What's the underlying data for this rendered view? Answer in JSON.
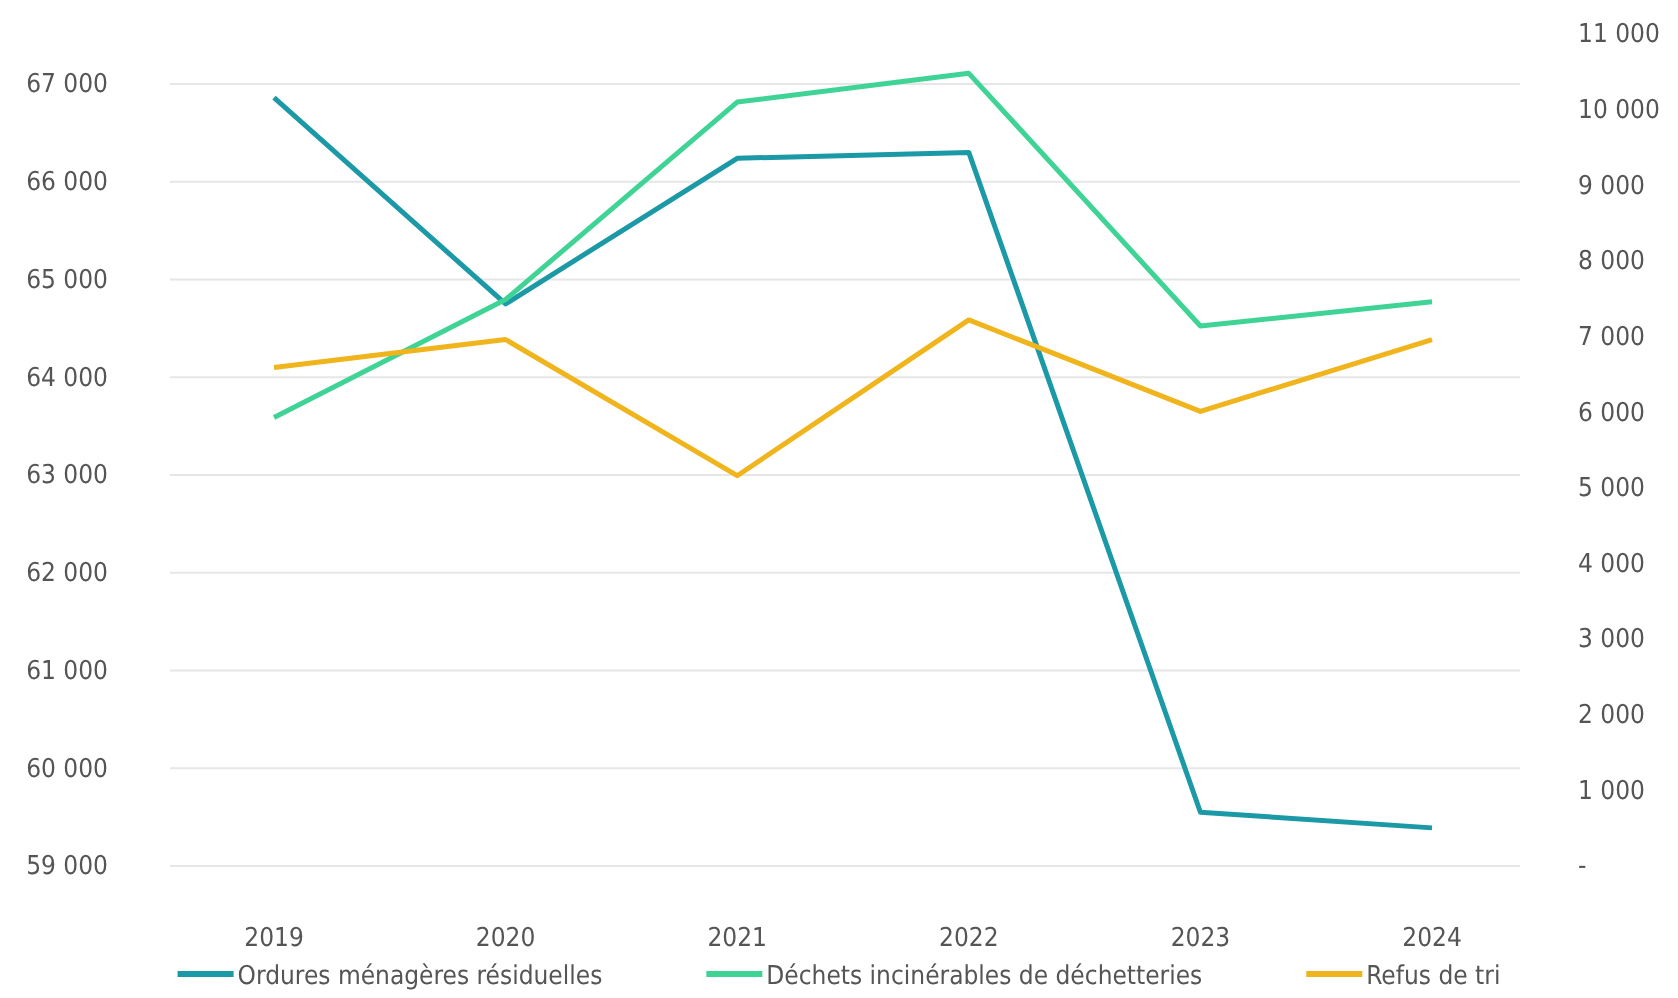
{
  "chart_data": {
    "type": "line",
    "categories": [
      "2019",
      "2020",
      "2021",
      "2022",
      "2023",
      "2024"
    ],
    "series": [
      {
        "name": "Ordures ménagères résiduelles",
        "color": "#1b99a6",
        "values": [
          66860,
          64750,
          66240,
          66300,
          59550,
          59390
        ]
      },
      {
        "name": "Déchets incinérables de déchetteries",
        "color": "#3fd495",
        "axis": "y2",
        "values": [
          5930,
          7490,
          10100,
          10480,
          7140,
          7460
        ]
      },
      {
        "name": "Refus de tri",
        "color": "#f0b41c",
        "axis": "y2",
        "values": [
          6590,
          6960,
          5160,
          7220,
          6010,
          6960
        ]
      }
    ],
    "ylim": [
      59000,
      67000
    ],
    "yticks": [
      {
        "value": 59000,
        "label": "59 000"
      },
      {
        "value": 60000,
        "label": "60 000"
      },
      {
        "value": 61000,
        "label": "61 000"
      },
      {
        "value": 62000,
        "label": "62 000"
      },
      {
        "value": 63000,
        "label": "63 000"
      },
      {
        "value": 64000,
        "label": "64 000"
      },
      {
        "value": 65000,
        "label": "65 000"
      },
      {
        "value": 66000,
        "label": "66 000"
      },
      {
        "value": 67000,
        "label": "67 000"
      }
    ],
    "y2lim": [
      0,
      11000
    ],
    "y2ticks": [
      {
        "value": 0,
        "label": "-"
      },
      {
        "value": 1000,
        "label": "1 000"
      },
      {
        "value": 2000,
        "label": "2 000"
      },
      {
        "value": 3000,
        "label": "3 000"
      },
      {
        "value": 4000,
        "label": "4 000"
      },
      {
        "value": 5000,
        "label": "5 000"
      },
      {
        "value": 6000,
        "label": "6 000"
      },
      {
        "value": 7000,
        "label": "7 000"
      },
      {
        "value": 8000,
        "label": "8 000"
      },
      {
        "value": 9000,
        "label": "9 000"
      },
      {
        "value": 10000,
        "label": "10 000"
      },
      {
        "value": 11000,
        "label": "11 000"
      }
    ],
    "grid": "y",
    "legend": "bottom",
    "marker": "none",
    "line_style": "solid"
  }
}
